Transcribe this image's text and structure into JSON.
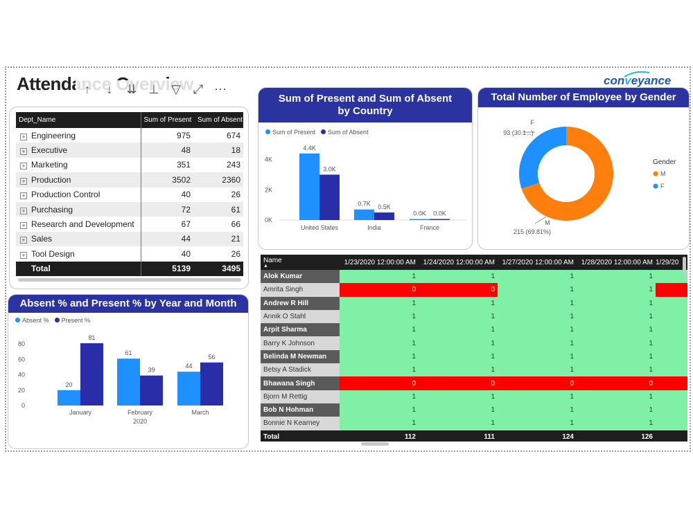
{
  "dashboard": {
    "title": "Attendance Overview",
    "logo": {
      "pre": "con",
      "accent": "v",
      "post": "eyance"
    }
  },
  "dept_table": {
    "headers": [
      "Dept_Name",
      "Sum of Present",
      "Sum of Absent"
    ],
    "rows": [
      {
        "name": "Engineering",
        "present": "975",
        "absent": "674"
      },
      {
        "name": "Executive",
        "present": "48",
        "absent": "18"
      },
      {
        "name": "Marketing",
        "present": "351",
        "absent": "243"
      },
      {
        "name": "Production",
        "present": "3502",
        "absent": "2360"
      },
      {
        "name": "Production Control",
        "present": "40",
        "absent": "26"
      },
      {
        "name": "Purchasing",
        "present": "72",
        "absent": "61"
      },
      {
        "name": "Research and Development",
        "present": "67",
        "absent": "66"
      },
      {
        "name": "Sales",
        "present": "44",
        "absent": "21"
      },
      {
        "name": "Tool Design",
        "present": "40",
        "absent": "26"
      }
    ],
    "total": {
      "label": "Total",
      "present": "5139",
      "absent": "3495"
    }
  },
  "chart_data": [
    {
      "type": "bar",
      "title": "Sum of Present and Sum of Absent by Country",
      "categories": [
        "United States",
        "India",
        "France"
      ],
      "series": [
        {
          "name": "Sum of Present",
          "values": [
            4400,
            700,
            0
          ],
          "labels": [
            "4.4K",
            "0.7K",
            "0.0K"
          ],
          "color": "#1e90ff"
        },
        {
          "name": "Sum of Absent",
          "values": [
            3000,
            500,
            0
          ],
          "labels": [
            "3.0K",
            "0.5K",
            "0.0K"
          ],
          "color": "#2a2da8"
        }
      ],
      "yticks": [
        "0K",
        "2K",
        "4K"
      ],
      "ylim": [
        0,
        4800
      ]
    },
    {
      "type": "pie",
      "title": "Total Number of Employee by Gender",
      "legend_title": "Gender",
      "slices": [
        {
          "name": "M",
          "value": 215,
          "label": "215 (69.81%)",
          "color": "#ff7f0e"
        },
        {
          "name": "F",
          "value": 93,
          "label": "93 (30.1...)",
          "color": "#1e90ff"
        }
      ]
    },
    {
      "type": "bar",
      "title": "Absent % and Present % by Year and Month",
      "categories": [
        "January",
        "February",
        "March"
      ],
      "x_group_label": "2020",
      "series": [
        {
          "name": "Absent %",
          "values": [
            20,
            61,
            44
          ],
          "color": "#1e90ff"
        },
        {
          "name": "Present %",
          "values": [
            81,
            39,
            56
          ],
          "color": "#2a2da8"
        }
      ],
      "yticks": [
        "0",
        "20",
        "40",
        "60",
        "80"
      ],
      "ylim": [
        0,
        90
      ]
    }
  ],
  "matrix": {
    "row_header": "Name",
    "columns": [
      "1/23/2020 12:00:00 AM",
      "1/24/2020 12:00:00 AM",
      "1/27/2020 12:00:00 AM",
      "1/28/2020 12:00:00 AM",
      "1/29/20"
    ],
    "rows": [
      {
        "name": "Alok Kumar",
        "values": [
          "1",
          "1",
          "1",
          "1",
          ""
        ]
      },
      {
        "name": "Amrita Singh",
        "values": [
          "0",
          "0",
          "1",
          "1",
          ""
        ]
      },
      {
        "name": "Andrew R Hill",
        "values": [
          "1",
          "1",
          "1",
          "1",
          ""
        ]
      },
      {
        "name": "Annik O Stahl",
        "values": [
          "1",
          "1",
          "1",
          "1",
          ""
        ]
      },
      {
        "name": "Arpit Sharma",
        "values": [
          "1",
          "1",
          "1",
          "1",
          ""
        ]
      },
      {
        "name": "Barry K Johnson",
        "values": [
          "1",
          "1",
          "1",
          "1",
          ""
        ]
      },
      {
        "name": "Belinda M Newman",
        "values": [
          "1",
          "1",
          "1",
          "1",
          ""
        ]
      },
      {
        "name": "Betsy A Stadick",
        "values": [
          "1",
          "1",
          "1",
          "1",
          ""
        ]
      },
      {
        "name": "Bhawana Singh",
        "values": [
          "0",
          "0",
          "0",
          "0",
          ""
        ]
      },
      {
        "name": "Bjorn M Rettig",
        "values": [
          "1",
          "1",
          "1",
          "1",
          ""
        ]
      },
      {
        "name": "Bob N Hohman",
        "values": [
          "1",
          "1",
          "1",
          "1",
          ""
        ]
      },
      {
        "name": "Bonnie N Kearney",
        "values": [
          "1",
          "1",
          "1",
          "1",
          ""
        ]
      }
    ],
    "total": {
      "label": "Total",
      "values": [
        "112",
        "111",
        "124",
        "126",
        ""
      ]
    }
  }
}
